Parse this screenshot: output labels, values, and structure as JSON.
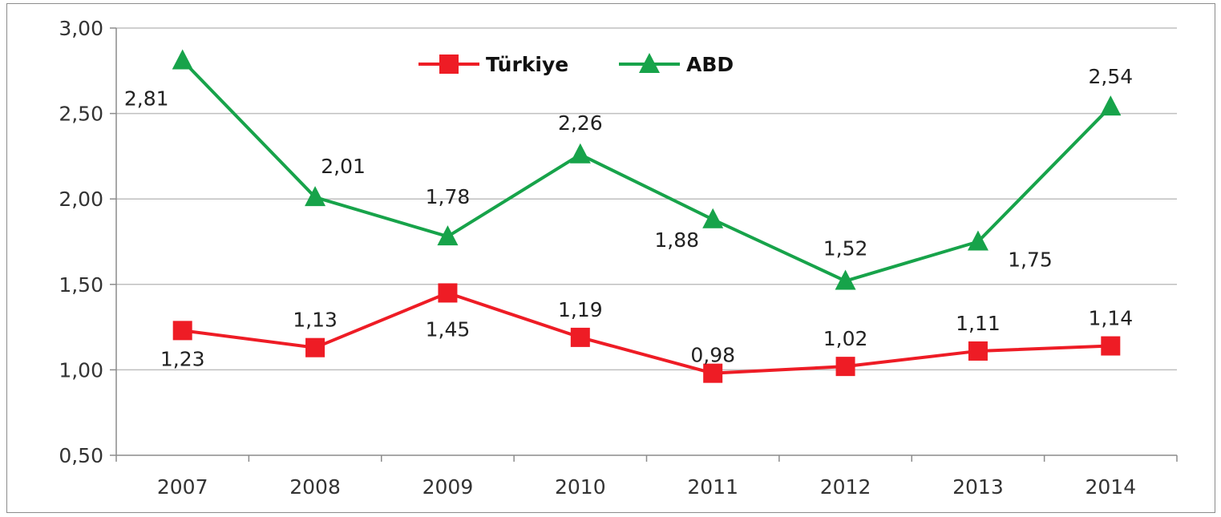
{
  "chart_data": {
    "type": "line",
    "title": "",
    "xlabel": "",
    "ylabel": "",
    "categories": [
      "2007",
      "2008",
      "2009",
      "2010",
      "2011",
      "2012",
      "2013",
      "2014"
    ],
    "ylim": [
      0.5,
      3.0
    ],
    "y_ticks": [
      "0,50",
      "1,00",
      "1,50",
      "2,00",
      "2,50",
      "3,00"
    ],
    "grid": "horizontal",
    "legend": "top-center",
    "series": [
      {
        "name": "Türkiye",
        "color": "#ee1c25",
        "marker": "square",
        "values": [
          1.23,
          1.13,
          1.45,
          1.19,
          0.98,
          1.02,
          1.11,
          1.14
        ],
        "labels": [
          "1,23",
          "1,13",
          "1,45",
          "1,19",
          "0,98",
          "1,02",
          "1,11",
          "1,14"
        ]
      },
      {
        "name": "ABD",
        "color": "#17a34a",
        "marker": "triangle",
        "values": [
          2.81,
          2.01,
          1.78,
          2.26,
          1.88,
          1.52,
          1.75,
          2.54
        ],
        "labels": [
          "2,81",
          "2,01",
          "1,78",
          "2,26",
          "1,88",
          "1,52",
          "1,75",
          "2,54"
        ]
      }
    ]
  }
}
